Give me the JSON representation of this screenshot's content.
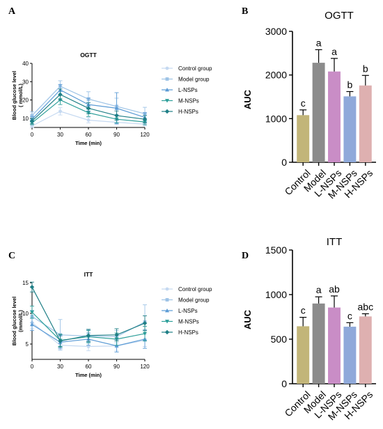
{
  "panels": {
    "a": "A",
    "b": "B",
    "c": "C",
    "d": "D"
  },
  "chart_data": [
    {
      "id": "ogtt-line",
      "type": "line",
      "title": "OGTT",
      "xlabel": "Time (min)",
      "ylabel": "Blood glucose level\n( mmol/L)",
      "x": [
        0,
        30,
        60,
        90,
        120
      ],
      "xticks": [
        "0",
        "30",
        "60",
        "90",
        "120"
      ],
      "yticks": [
        10,
        20,
        30,
        40
      ],
      "ylim": [
        5,
        40
      ],
      "legend_position": "right",
      "series": [
        {
          "name": "Control group",
          "marker": "circle",
          "color": "#c5d9f1",
          "values": [
            5.8,
            13.8,
            9.0,
            7.8,
            6.8
          ],
          "err": [
            1.2,
            2.0,
            1.5,
            1.2,
            1.0
          ]
        },
        {
          "name": "Model group",
          "marker": "square",
          "color": "#9dc3e6",
          "values": [
            11.5,
            27.5,
            20.5,
            16.5,
            12.5
          ],
          "err": [
            2.0,
            3.0,
            4.0,
            4.5,
            3.5
          ]
        },
        {
          "name": "L-NSPs",
          "marker": "triangle-up",
          "color": "#5b9bd5",
          "values": [
            9.5,
            25.5,
            17.5,
            15.5,
            10.5
          ],
          "err": [
            1.5,
            3.0,
            3.5,
            8.5,
            2.5
          ]
        },
        {
          "name": "M-NSPs",
          "marker": "triangle-down",
          "color": "#2e9f9a",
          "values": [
            7.5,
            20.0,
            13.0,
            9.5,
            8.0
          ],
          "err": [
            1.0,
            2.5,
            2.0,
            2.0,
            1.5
          ]
        },
        {
          "name": "H-NSPs",
          "marker": "diamond",
          "color": "#1f7f86",
          "values": [
            8.5,
            23.0,
            15.5,
            11.5,
            9.5
          ],
          "err": [
            1.5,
            3.0,
            3.0,
            2.5,
            2.0
          ]
        }
      ]
    },
    {
      "id": "ogtt-auc",
      "type": "bar",
      "title": "OGTT",
      "xlabel": "",
      "ylabel": "AUC",
      "categories": [
        "Control",
        "Model",
        "L-NSPs",
        "M-NSPs",
        "H-NSPs"
      ],
      "values": [
        1080,
        2280,
        2080,
        1510,
        1760
      ],
      "errors": [
        120,
        300,
        300,
        110,
        230
      ],
      "letters": [
        "c",
        "a",
        "a",
        "b",
        "b"
      ],
      "colors": [
        "#c2b579",
        "#8c8c8c",
        "#c98dc6",
        "#8fa9da",
        "#deb0b0"
      ],
      "yticks": [
        0,
        1000,
        2000,
        3000
      ],
      "ylim": [
        0,
        3000
      ]
    },
    {
      "id": "itt-line",
      "type": "line",
      "title": "ITT",
      "xlabel": "Time (min)",
      "ylabel": "Blood glucose level\n(mmol/L)",
      "x": [
        0,
        30,
        60,
        90,
        120
      ],
      "xticks": [
        "0",
        "30",
        "60",
        "90",
        "120"
      ],
      "yticks": [
        5,
        10,
        15
      ],
      "ylim": [
        2.5,
        15
      ],
      "legend_position": "right",
      "series": [
        {
          "name": "Control group",
          "marker": "circle",
          "color": "#c5d9f1",
          "values": [
            8.5,
            4.8,
            4.6,
            4.7,
            5.6
          ],
          "err": [
            1.0,
            0.6,
            0.7,
            0.8,
            1.0
          ]
        },
        {
          "name": "Model group",
          "marker": "square",
          "color": "#9dc3e6",
          "values": [
            9.5,
            6.5,
            6.3,
            6.2,
            8.6
          ],
          "err": [
            1.0,
            2.5,
            1.0,
            1.0,
            2.8
          ]
        },
        {
          "name": "L-NSPs",
          "marker": "triangle-up",
          "color": "#5b9bd5",
          "values": [
            8.2,
            5.3,
            5.8,
            4.7,
            5.8
          ],
          "err": [
            1.0,
            1.0,
            1.0,
            1.0,
            1.5
          ]
        },
        {
          "name": "M-NSPs",
          "marker": "triangle-down",
          "color": "#2e9f9a",
          "values": [
            10.2,
            5.6,
            6.2,
            5.8,
            6.7
          ],
          "err": [
            1.0,
            1.0,
            1.0,
            1.0,
            1.2
          ]
        },
        {
          "name": "H-NSPs",
          "marker": "diamond",
          "color": "#1f7f86",
          "values": [
            14.3,
            5.5,
            6.4,
            6.5,
            8.4
          ],
          "err": [
            0.8,
            1.0,
            1.0,
            1.0,
            1.2
          ]
        }
      ]
    },
    {
      "id": "itt-auc",
      "type": "bar",
      "title": "ITT",
      "xlabel": "",
      "ylabel": "AUC",
      "categories": [
        "Control",
        "Model",
        "L-NSPs",
        "M-NSPs",
        "H-NSPs"
      ],
      "values": [
        645,
        900,
        855,
        640,
        755
      ],
      "errors": [
        100,
        75,
        130,
        45,
        30
      ],
      "letters": [
        "c",
        "a",
        "ab",
        "c",
        "abc"
      ],
      "colors": [
        "#c2b579",
        "#8c8c8c",
        "#c98dc6",
        "#8fa9da",
        "#deb0b0"
      ],
      "yticks": [
        0,
        500,
        1000,
        1500
      ],
      "ylim": [
        0,
        1500
      ]
    }
  ]
}
